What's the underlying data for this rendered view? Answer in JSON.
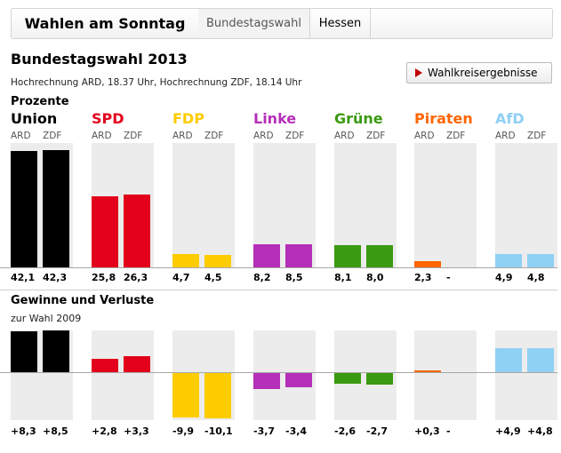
{
  "header": {
    "title": "Wahlen am Sonntag",
    "tabs": [
      {
        "label": "Bundestagswahl",
        "active": true
      },
      {
        "label": "Hessen",
        "active": false
      }
    ]
  },
  "main": {
    "title": "Bundestagswahl 2013",
    "subtitle": "Hochrechnung ARD, 18.37 Uhr, Hochrechnung ZDF, 18.14 Uhr",
    "button_label": "Wahlkreisergebnisse",
    "section1_label": "Prozente",
    "section2_title": "Gewinne und Verluste",
    "section2_subtitle": "zur Wahl 2009"
  },
  "chart_data": [
    {
      "type": "bar",
      "title": "Prozente",
      "categories": [
        "Union",
        "SPD",
        "FDP",
        "Linke",
        "Grüne",
        "Piraten",
        "AfD"
      ],
      "series": [
        {
          "name": "ARD",
          "values": [
            42.1,
            25.8,
            4.7,
            8.2,
            8.1,
            2.3,
            4.9
          ],
          "labels": [
            "42,1",
            "25,8",
            "4,7",
            "8,2",
            "8,1",
            "2,3",
            "4,9"
          ]
        },
        {
          "name": "ZDF",
          "values": [
            42.3,
            26.3,
            4.5,
            8.5,
            8.0,
            null,
            4.8
          ],
          "labels": [
            "42,3",
            "26,3",
            "4,5",
            "8,5",
            "8,0",
            "-",
            "4,8"
          ]
        }
      ],
      "colors": [
        "#000000",
        "#e3001b",
        "#ffcc00",
        "#b52fb8",
        "#3a9a10",
        "#ff6600",
        "#8fd0f5"
      ],
      "ylim": [
        0,
        45
      ]
    },
    {
      "type": "bar",
      "title": "Gewinne und Verluste",
      "subtitle": "zur Wahl 2009",
      "categories": [
        "Union",
        "SPD",
        "FDP",
        "Linke",
        "Grüne",
        "Piraten",
        "AfD"
      ],
      "series": [
        {
          "name": "ARD",
          "values": [
            8.3,
            2.8,
            -9.9,
            -3.7,
            -2.6,
            0.3,
            4.9
          ],
          "labels": [
            "+8,3",
            "+2,8",
            "-9,9",
            "-3,7",
            "-2,6",
            "+0,3",
            "+4,9"
          ]
        },
        {
          "name": "ZDF",
          "values": [
            8.5,
            3.3,
            -10.1,
            -3.4,
            -2.7,
            null,
            4.8
          ],
          "labels": [
            "+8,5",
            "+3,3",
            "-10,1",
            "-3,4",
            "-2,7",
            "-",
            "+4,8"
          ]
        }
      ],
      "colors": [
        "#000000",
        "#e3001b",
        "#ffcc00",
        "#b52fb8",
        "#3a9a10",
        "#ff6600",
        "#8fd0f5"
      ],
      "ylim": [
        -10.5,
        8.5
      ]
    }
  ]
}
